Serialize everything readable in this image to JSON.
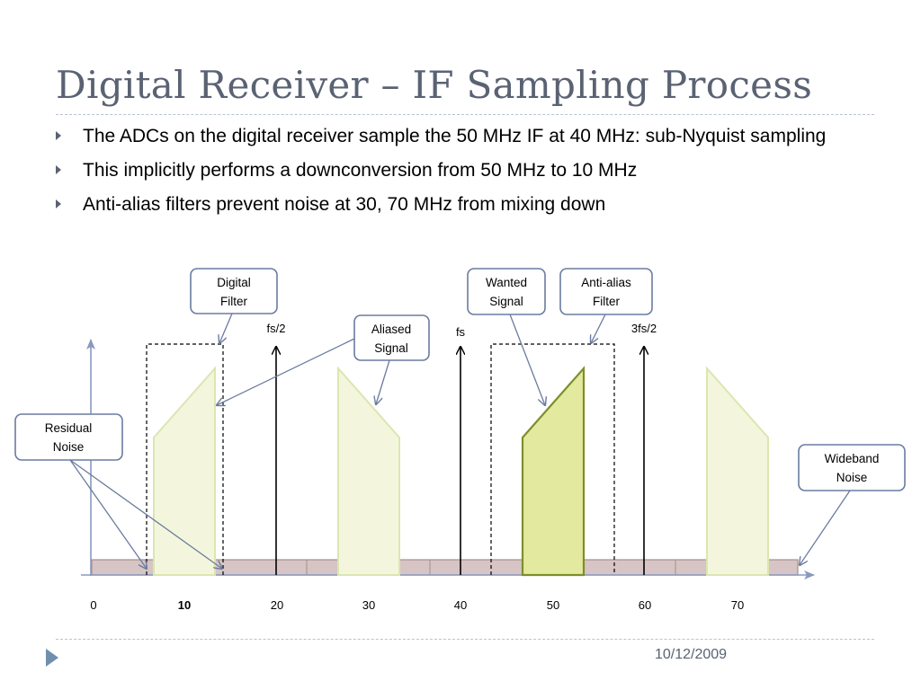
{
  "title": "Digital Receiver – IF Sampling Process",
  "bullets": [
    "The ADCs on the digital receiver sample the 50 MHz IF at 40 MHz: sub-Nyquist sampling",
    "This implicitly performs a downconversion from 50 MHz to 10 MHz",
    "Anti-alias filters prevent noise at 30, 70 MHz from mixing down"
  ],
  "callouts": {
    "digital_filter": [
      "Digital",
      "Filter"
    ],
    "aliased_signal": [
      "Aliased",
      "Signal"
    ],
    "wanted_signal": [
      "Wanted",
      "Signal"
    ],
    "anti_alias_filter": [
      "Anti-alias",
      "Filter"
    ],
    "residual_noise": [
      "Residual",
      "Noise"
    ],
    "wideband_noise": [
      "Wideband",
      "Noise"
    ]
  },
  "markers": {
    "half_fs": "fs/2",
    "fs": "fs",
    "three_half_fs": "3fs/2"
  },
  "x_axis": {
    "ticks": [
      "0",
      "10",
      "20",
      "30",
      "40",
      "50",
      "60",
      "70"
    ],
    "bold_tick": "10"
  },
  "colors": {
    "title": "#5a6273",
    "callout_border": "#6b7ba0",
    "signal_fill": "#f3f6dc",
    "signal_stroke": "#dbe6b0",
    "wanted_fill": "#e3ea9f",
    "wanted_stroke": "#7d8f2a",
    "noise_floor": "#d6c5c4"
  },
  "footer": {
    "date": "10/12/2009"
  }
}
